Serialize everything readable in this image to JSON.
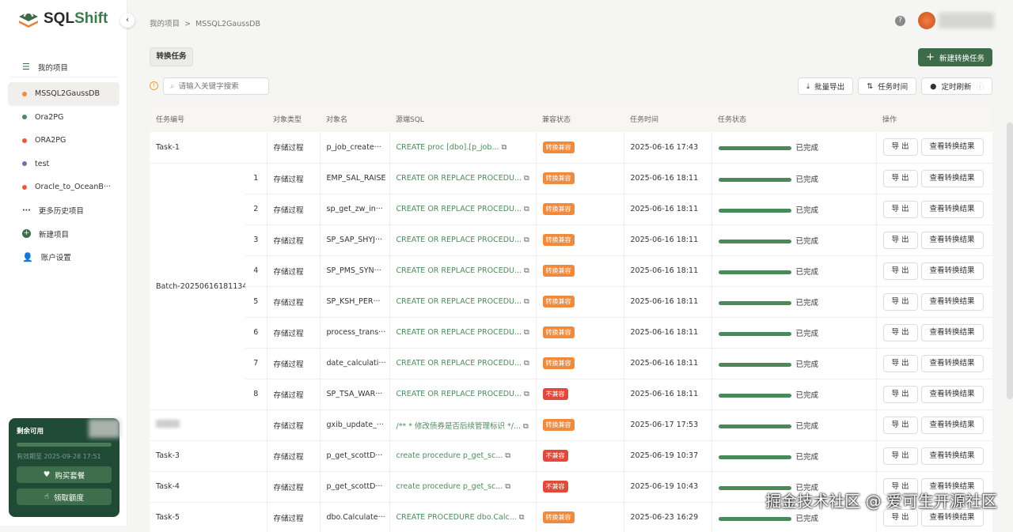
{
  "app": {
    "logo_prefix": "SQL",
    "logo_suffix": "Shift"
  },
  "breadcrumb": [
    "我的项目",
    ">",
    "MSSQL2GaussDB"
  ],
  "sidebar": {
    "header": "我的项目",
    "projects": [
      {
        "label": "MSSQL2GaussDB",
        "color": "#f08a3c",
        "active": true
      },
      {
        "label": "Ora2PG",
        "color": "#4e8a5c"
      },
      {
        "label": "ORA2PG",
        "color": "#e85a3c"
      },
      {
        "label": "test",
        "color": "#6a74a8"
      },
      {
        "label": "Oracle_to_OceanB···",
        "color": "#e85a3c"
      }
    ],
    "more": "更多历史项目",
    "new_project": "新建项目",
    "account": "账户设置"
  },
  "quota": {
    "title": "剩余可用",
    "expiry": "有效期至 2025-09-28 17:51",
    "buy": "购买套餐",
    "claim": "领取额度"
  },
  "toolbar": {
    "tab": "转换任务",
    "new_task": "新建转换任务",
    "search_placeholder": "请输入关键字搜索",
    "batch_export": "批量导出",
    "task_time": "任务时间",
    "auto_refresh": "定时刷新"
  },
  "table": {
    "headers": [
      "任务编号",
      "",
      "对象类型",
      "对象名",
      "源端SQL",
      "兼容状态",
      "任务时间",
      "任务状态",
      "操作"
    ],
    "export_label": "导 出",
    "view_label": "查看转换结果",
    "colors": {
      "compatible": "#f08a3c",
      "incompatible": "#e04a3a",
      "progress": "#4a8a58"
    },
    "groups": [
      {
        "task": "Task-1",
        "rows": [
          {
            "seq": "",
            "type": "存储过程",
            "name": "p_job_create···",
            "sql": "CREATE proc [dbo].[p_job...",
            "compat": "转换兼容",
            "time": "2025-06-16 17:43",
            "status": "已完成",
            "progress": 100
          }
        ]
      },
      {
        "task": "Batch-20250616181134",
        "rows": [
          {
            "seq": "1",
            "type": "存储过程",
            "name": "EMP_SAL_RAISE",
            "sql": "CREATE OR REPLACE PROCEDU...",
            "compat": "转换兼容",
            "time": "2025-06-16 18:11",
            "status": "已完成",
            "progress": 100
          },
          {
            "seq": "2",
            "type": "存储过程",
            "name": "sp_get_zw_in···",
            "sql": "CREATE OR REPLACE PROCEDU...",
            "compat": "转换兼容",
            "time": "2025-06-16 18:11",
            "status": "已完成",
            "progress": 100
          },
          {
            "seq": "3",
            "type": "存储过程",
            "name": "SP_SAP_SHYJ···",
            "sql": "CREATE OR REPLACE PROCEDU...",
            "compat": "转换兼容",
            "time": "2025-06-16 18:11",
            "status": "已完成",
            "progress": 100
          },
          {
            "seq": "4",
            "type": "存储过程",
            "name": "SP_PMS_SYN···",
            "sql": "CREATE OR REPLACE PROCEDU...",
            "compat": "转换兼容",
            "time": "2025-06-16 18:11",
            "status": "已完成",
            "progress": 100
          },
          {
            "seq": "5",
            "type": "存储过程",
            "name": "SP_KSH_PER···",
            "sql": "CREATE OR REPLACE PROCEDU...",
            "compat": "转换兼容",
            "time": "2025-06-16 18:11",
            "status": "已完成",
            "progress": 100
          },
          {
            "seq": "6",
            "type": "存储过程",
            "name": "process_trans···",
            "sql": "CREATE OR REPLACE PROCEDU...",
            "compat": "转换兼容",
            "time": "2025-06-16 18:11",
            "status": "已完成",
            "progress": 100
          },
          {
            "seq": "7",
            "type": "存储过程",
            "name": "date_calculati···",
            "sql": "CREATE OR REPLACE PROCEDU...",
            "compat": "转换兼容",
            "time": "2025-06-16 18:11",
            "status": "已完成",
            "progress": 100
          },
          {
            "seq": "8",
            "type": "存储过程",
            "name": "SP_TSA_WAR···",
            "sql": "CREATE OR REPLACE PROCEDU...",
            "compat": "不兼容",
            "time": "2025-06-16 18:11",
            "status": "已完成",
            "progress": 100
          }
        ]
      },
      {
        "task": "",
        "blurred": true,
        "rows": [
          {
            "seq": "",
            "type": "存储过程",
            "name": "gxib_update_···",
            "sql": "/** * 修改债券是否后续管理标识 */...",
            "compat": "转换兼容",
            "time": "2025-06-17 17:53",
            "status": "已完成",
            "progress": 100
          }
        ]
      },
      {
        "task": "Task-3",
        "rows": [
          {
            "seq": "",
            "type": "存储过程",
            "name": "p_get_scottD···",
            "sql": "create procedure p_get_sc...",
            "compat": "不兼容",
            "time": "2025-06-19 10:37",
            "status": "已完成",
            "progress": 100
          }
        ]
      },
      {
        "task": "Task-4",
        "rows": [
          {
            "seq": "",
            "type": "存储过程",
            "name": "p_get_scottD···",
            "sql": "create procedure p_get_sc...",
            "compat": "不兼容",
            "time": "2025-06-19 10:43",
            "status": "已完成",
            "progress": 100
          }
        ]
      },
      {
        "task": "Task-5",
        "rows": [
          {
            "seq": "",
            "type": "存储过程",
            "name": "dbo.Calculate···",
            "sql": "CREATE PROCEDURE dbo.Calc...",
            "compat": "转换兼容",
            "time": "2025-06-23 16:29",
            "status": "已完成",
            "progress": 100
          }
        ]
      }
    ]
  },
  "watermark": "掘金技术社区 @ 爱可生开源社区"
}
